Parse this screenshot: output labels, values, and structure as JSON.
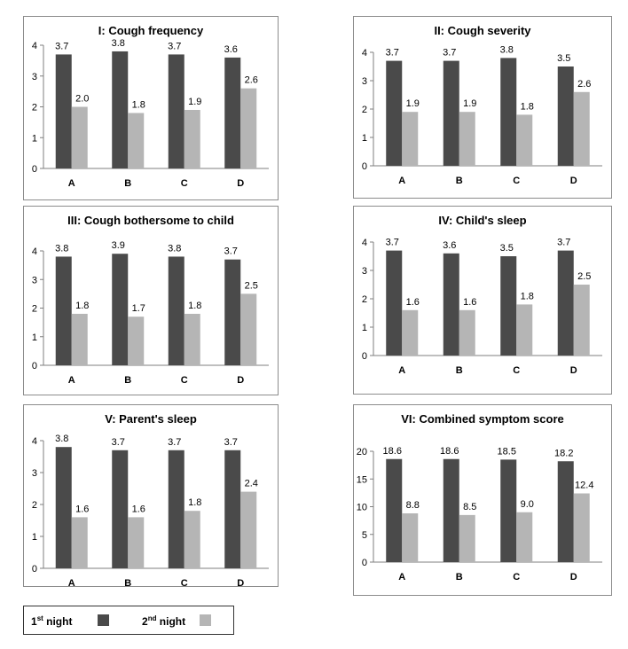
{
  "colors": {
    "first_night": "#4a4a4a",
    "second_night": "#b5b5b5",
    "axis": "#7f7f7f",
    "text": "#000000"
  },
  "legend": {
    "first_label": "1",
    "first_sup": "st",
    "first_suffix": " night",
    "second_label": "2",
    "second_sup": "nd",
    "second_suffix": " night"
  },
  "chart_data": [
    {
      "type": "bar",
      "title": "I: Cough frequency",
      "categories": [
        "A",
        "B",
        "C",
        "D"
      ],
      "ylim": [
        0,
        4
      ],
      "yticks": [
        0,
        1,
        2,
        3,
        4
      ],
      "series": [
        {
          "values": [
            3.7,
            3.8,
            3.7,
            3.6
          ],
          "labels": [
            "3.7",
            "3.8",
            "3.7",
            "3.6"
          ]
        },
        {
          "values": [
            2.0,
            1.8,
            1.9,
            2.6
          ],
          "labels": [
            "2.0",
            "1.8",
            "1.9",
            "2.6"
          ]
        }
      ]
    },
    {
      "type": "bar",
      "title": "II: Cough severity",
      "categories": [
        "A",
        "B",
        "C",
        "D"
      ],
      "ylim": [
        0,
        4
      ],
      "yticks": [
        0,
        1,
        2,
        3,
        4
      ],
      "series": [
        {
          "values": [
            3.7,
            3.7,
            3.8,
            3.5
          ],
          "labels": [
            "3.7",
            "3.7",
            "3.8",
            "3.5"
          ]
        },
        {
          "values": [
            1.9,
            1.9,
            1.8,
            2.6
          ],
          "labels": [
            "1.9",
            "1.9",
            "1.8",
            "2.6"
          ]
        }
      ]
    },
    {
      "type": "bar",
      "title": "III: Cough bothersome to child",
      "categories": [
        "A",
        "B",
        "C",
        "D"
      ],
      "ylim": [
        0,
        4
      ],
      "yticks": [
        0,
        1,
        2,
        3,
        4
      ],
      "series": [
        {
          "values": [
            3.8,
            3.9,
            3.8,
            3.7
          ],
          "labels": [
            "3.8",
            "3.9",
            "3.8",
            "3.7"
          ]
        },
        {
          "values": [
            1.8,
            1.7,
            1.8,
            2.5
          ],
          "labels": [
            "1.8",
            "1.7",
            "1.8",
            "2.5"
          ]
        }
      ]
    },
    {
      "type": "bar",
      "title": "IV: Child's sleep",
      "categories": [
        "A",
        "B",
        "C",
        "D"
      ],
      "ylim": [
        0,
        4
      ],
      "yticks": [
        0,
        1,
        2,
        3,
        4
      ],
      "series": [
        {
          "values": [
            3.7,
            3.6,
            3.5,
            3.7
          ],
          "labels": [
            "3.7",
            "3.6",
            "3.5",
            "3.7"
          ]
        },
        {
          "values": [
            1.6,
            1.6,
            1.8,
            2.5
          ],
          "labels": [
            "1.6",
            "1.6",
            "1.8",
            "2.5"
          ]
        }
      ]
    },
    {
      "type": "bar",
      "title": "V: Parent's sleep",
      "categories": [
        "A",
        "B",
        "C",
        "D"
      ],
      "ylim": [
        0,
        4
      ],
      "yticks": [
        0,
        1,
        2,
        3,
        4
      ],
      "series": [
        {
          "values": [
            3.8,
            3.7,
            3.7,
            3.7
          ],
          "labels": [
            "3.8",
            "3.7",
            "3.7",
            "3.7"
          ]
        },
        {
          "values": [
            1.6,
            1.6,
            1.8,
            2.4
          ],
          "labels": [
            "1.6",
            "1.6",
            "1.8",
            "2.4"
          ]
        }
      ]
    },
    {
      "type": "bar",
      "title": "VI: Combined symptom score",
      "categories": [
        "A",
        "B",
        "C",
        "D"
      ],
      "ylim": [
        0,
        20
      ],
      "yticks": [
        0,
        5,
        10,
        15,
        20
      ],
      "series": [
        {
          "values": [
            18.6,
            18.6,
            18.5,
            18.2
          ],
          "labels": [
            "18.6",
            "18.6",
            "18.5",
            "18.2"
          ]
        },
        {
          "values": [
            8.8,
            8.5,
            9.0,
            12.4
          ],
          "labels": [
            "8.8",
            "8.5",
            "9.0",
            "12.4"
          ]
        }
      ]
    }
  ]
}
